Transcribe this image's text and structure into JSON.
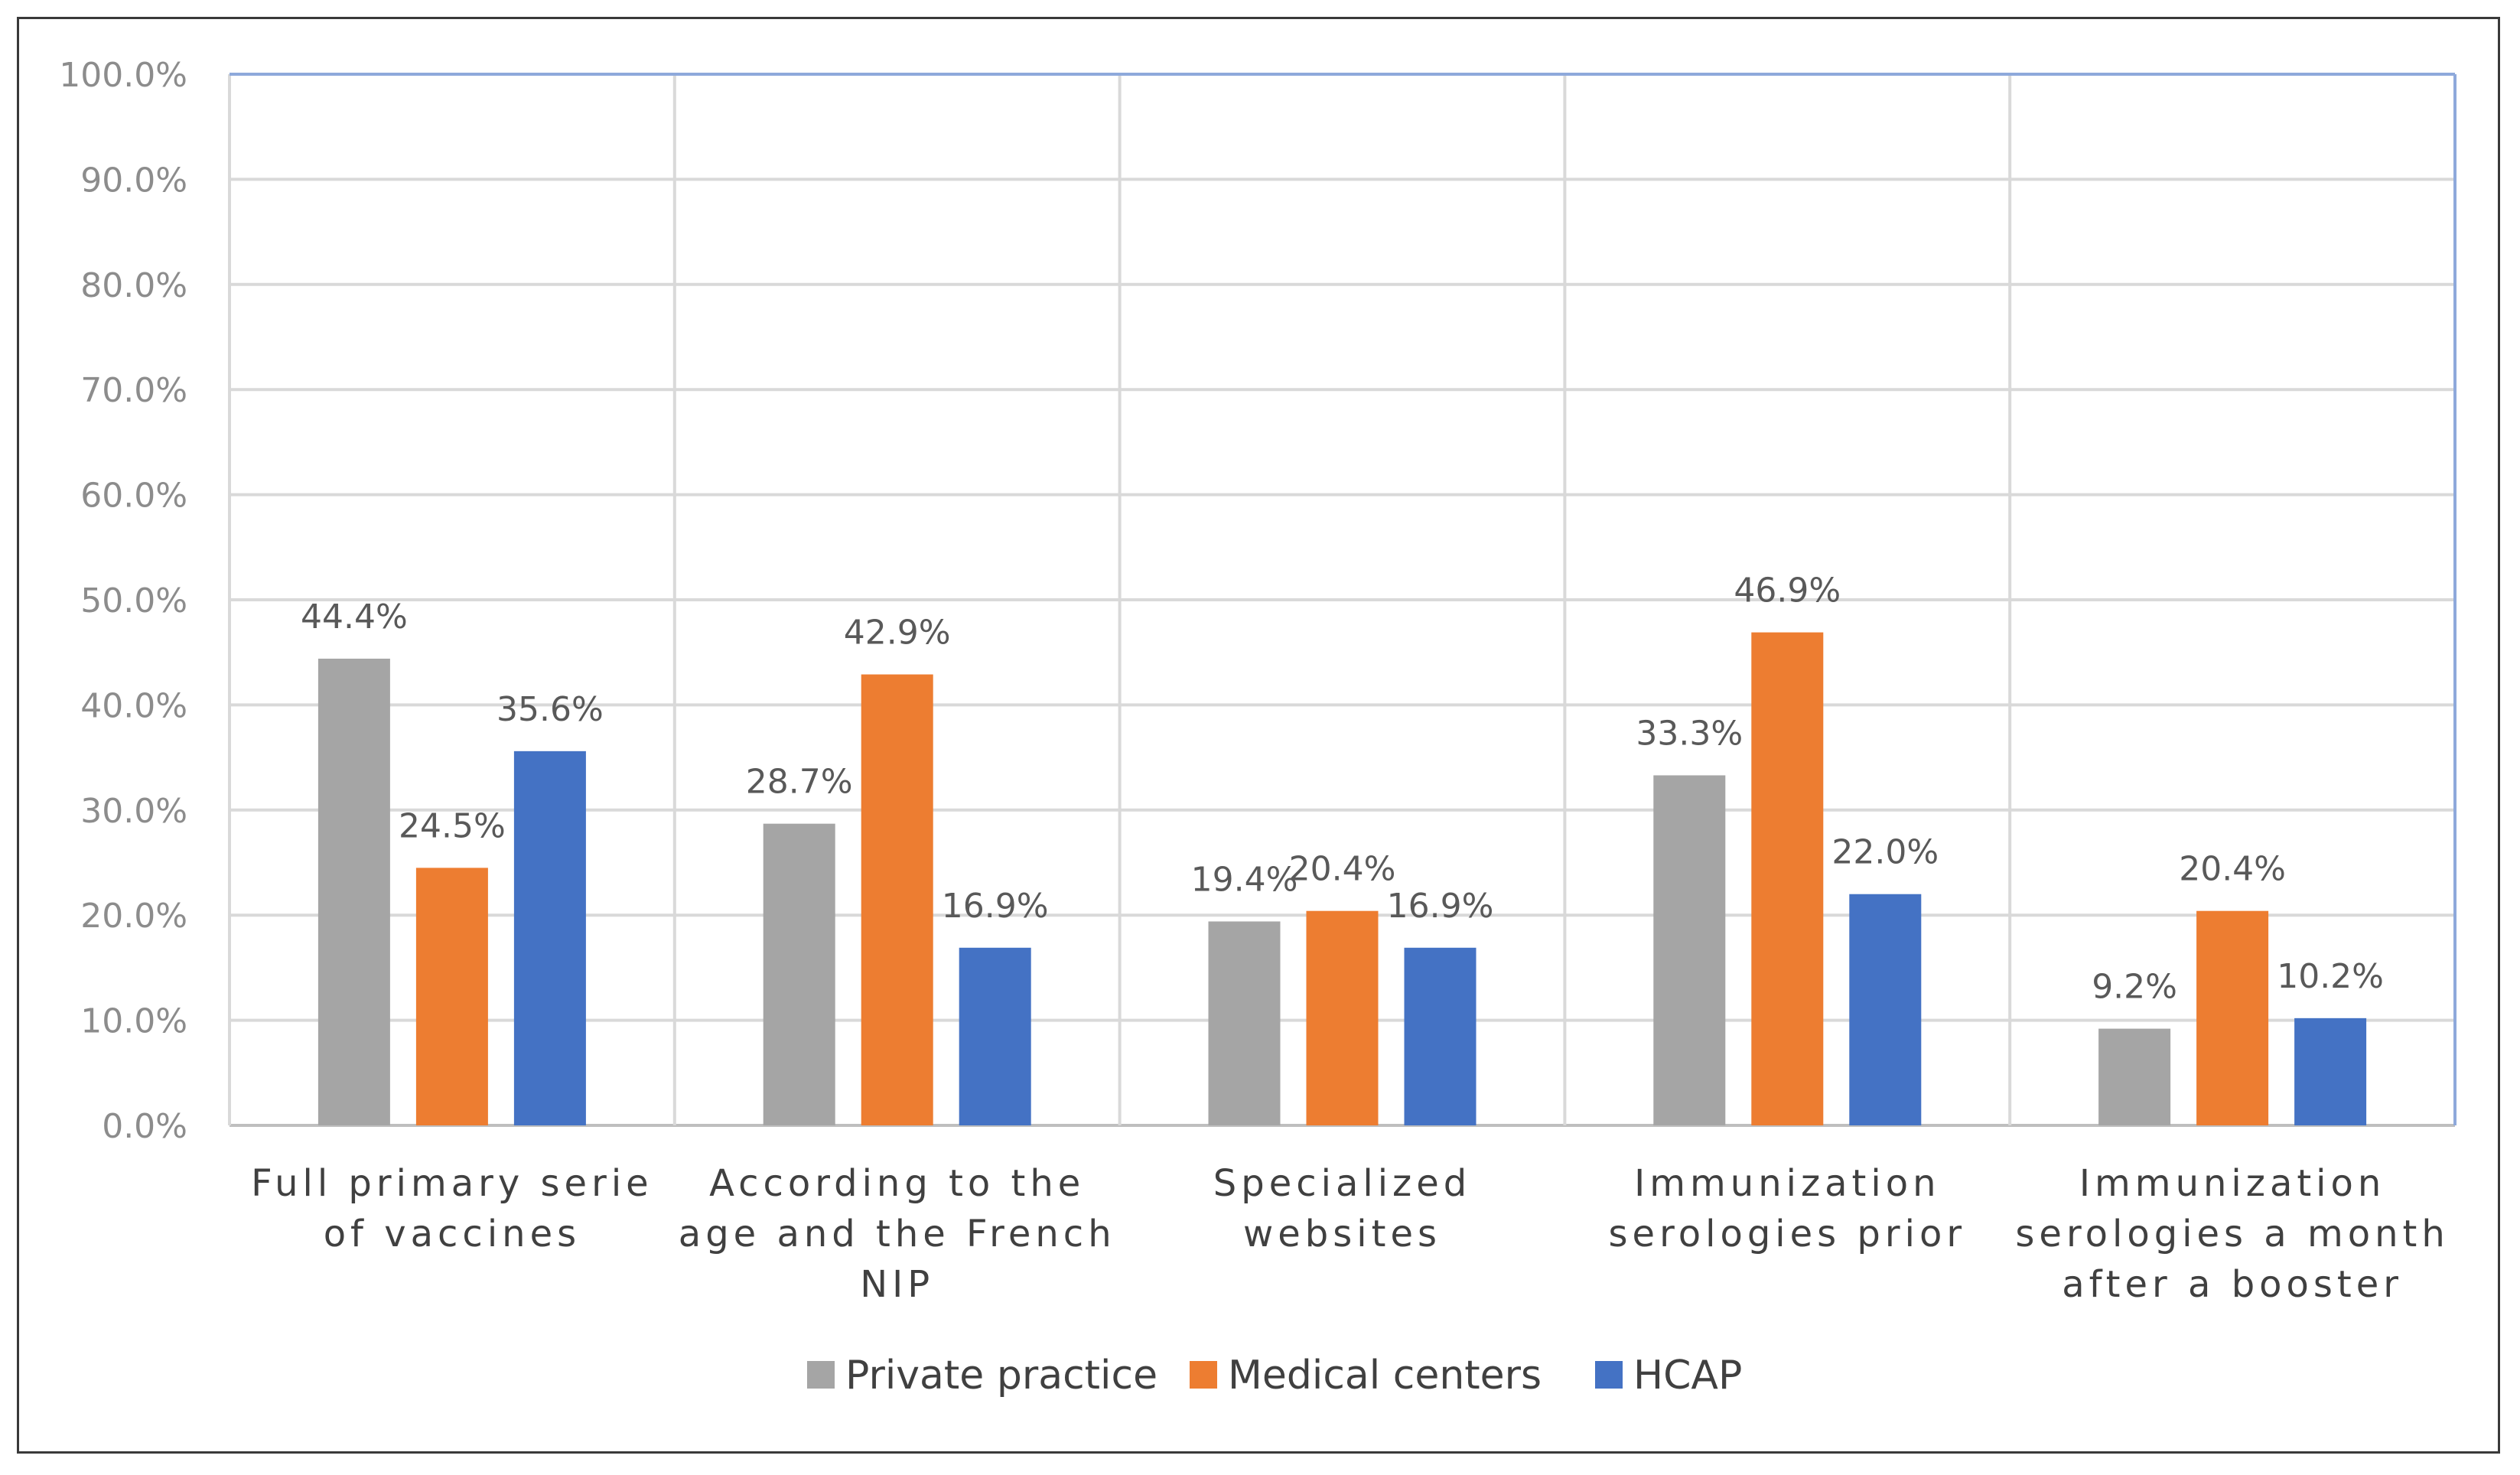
{
  "chart_data": {
    "type": "bar",
    "title": "",
    "xlabel": "",
    "ylabel": "",
    "ylim": [
      0,
      100
    ],
    "ytick_step": 10,
    "ytick_labels": [
      "0.0%",
      "10.0%",
      "20.0%",
      "30.0%",
      "40.0%",
      "50.0%",
      "60.0%",
      "70.0%",
      "80.0%",
      "90.0%",
      "100.0%"
    ],
    "grid": true,
    "legend_position": "bottom",
    "categories": [
      [
        "Full primary serie",
        "of vaccines"
      ],
      [
        "According to the",
        "age and the French",
        "NIP"
      ],
      [
        "Specialized",
        "websites"
      ],
      [
        "Immunization",
        "serologies prior"
      ],
      [
        "Immunization",
        "serologies a month",
        "after a booster"
      ]
    ],
    "series": [
      {
        "name": "Private practice",
        "color": "#a5a5a5",
        "values": [
          44.4,
          28.7,
          19.4,
          33.3,
          9.2
        ],
        "labels": [
          "44.4%",
          "28.7%",
          "19.4%",
          "33.3%",
          "9.2%"
        ]
      },
      {
        "name": "Medical centers",
        "color": "#ed7d31",
        "values": [
          24.5,
          42.9,
          20.4,
          46.9,
          20.4
        ],
        "labels": [
          "24.5%",
          "42.9%",
          "20.4%",
          "46.9%",
          "20.4%"
        ]
      },
      {
        "name": "HCAP",
        "color": "#4472c4",
        "values": [
          35.6,
          16.9,
          16.9,
          22.0,
          10.2
        ],
        "labels": [
          "35.6%",
          "16.9%",
          "16.9%",
          "22.0%",
          "10.2%"
        ]
      }
    ]
  }
}
